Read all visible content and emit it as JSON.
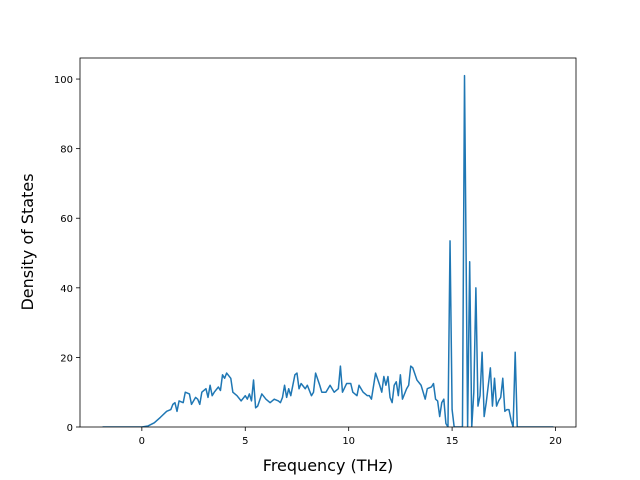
{
  "chart_data": {
    "type": "line",
    "x_label": "Frequency (THz)",
    "y_label": "Density of States",
    "xlim": [
      -2.99,
      20.99
    ],
    "ylim": [
      0,
      106.05
    ],
    "xticks": [
      0,
      5,
      10,
      15,
      20
    ],
    "yticks": [
      0,
      20,
      40,
      60,
      80,
      100
    ],
    "x": [
      -1.9,
      0,
      0.3,
      0.6,
      0.9,
      1.2,
      1.4,
      1.5,
      1.6,
      1.7,
      1.8,
      2.0,
      2.1,
      2.3,
      2.4,
      2.6,
      2.7,
      2.8,
      2.9,
      3.1,
      3.2,
      3.3,
      3.4,
      3.5,
      3.7,
      3.8,
      3.9,
      4.0,
      4.1,
      4.3,
      4.4,
      4.6,
      4.8,
      5.0,
      5.1,
      5.2,
      5.3,
      5.4,
      5.5,
      5.6,
      5.8,
      6.0,
      6.2,
      6.4,
      6.6,
      6.7,
      6.8,
      6.9,
      7.0,
      7.1,
      7.2,
      7.4,
      7.5,
      7.6,
      7.7,
      7.9,
      8.0,
      8.2,
      8.3,
      8.4,
      8.6,
      8.7,
      8.9,
      9.1,
      9.3,
      9.5,
      9.6,
      9.7,
      9.9,
      10.1,
      10.2,
      10.4,
      10.5,
      10.7,
      10.9,
      11.0,
      11.1,
      11.3,
      11.5,
      11.6,
      11.7,
      11.8,
      11.9,
      12.0,
      12.1,
      12.2,
      12.3,
      12.4,
      12.5,
      12.6,
      12.8,
      12.9,
      13.0,
      13.1,
      13.3,
      13.5,
      13.6,
      13.7,
      13.8,
      14.0,
      14.1,
      14.2,
      14.3,
      14.4,
      14.5,
      14.6,
      14.7,
      14.8,
      14.9,
      15.0,
      15.1,
      15.5,
      15.6,
      15.75,
      15.85,
      15.95,
      16.05,
      16.15,
      16.25,
      16.35,
      16.45,
      16.55,
      16.65,
      16.85,
      16.95,
      17.05,
      17.15,
      17.25,
      17.35,
      17.45,
      17.55,
      17.65,
      17.75,
      17.85,
      17.95,
      18.05,
      18.15,
      19.9
    ],
    "series": [
      {
        "color": "#1f77b4",
        "values": [
          0,
          0,
          0.3,
          1.2,
          2.8,
          4.5,
          5,
          6.5,
          7,
          4.5,
          7.5,
          7,
          10,
          9.5,
          6.5,
          8.5,
          8,
          6.5,
          10,
          11,
          8.5,
          12,
          9,
          10,
          11.5,
          10.5,
          15,
          14,
          15.5,
          14,
          10,
          9,
          7.5,
          9,
          8,
          9.5,
          7.5,
          13.5,
          5.5,
          6,
          9.5,
          8,
          7,
          8,
          7.5,
          7,
          8.5,
          12,
          8.5,
          11,
          9,
          15,
          15.5,
          11,
          12.5,
          11,
          12,
          9,
          10,
          15.5,
          12,
          10,
          10,
          12,
          10,
          11,
          17.5,
          10,
          12.5,
          12.5,
          10,
          9,
          12,
          10,
          9,
          9,
          8,
          15.5,
          12,
          10,
          14.5,
          12,
          14.5,
          8.5,
          7,
          12,
          13,
          9,
          15,
          8,
          11,
          12,
          17.5,
          17,
          13.5,
          12,
          10,
          8,
          11,
          11.5,
          12.5,
          8,
          7.5,
          3,
          7,
          8,
          1,
          0,
          53.5,
          5,
          0,
          0,
          101,
          0,
          47.5,
          0,
          10,
          40,
          6,
          9,
          21.5,
          3,
          7,
          17,
          6,
          14,
          6,
          7.5,
          8.5,
          14,
          4.5,
          5,
          5,
          2,
          0,
          21.5,
          0,
          0
        ]
      }
    ]
  }
}
